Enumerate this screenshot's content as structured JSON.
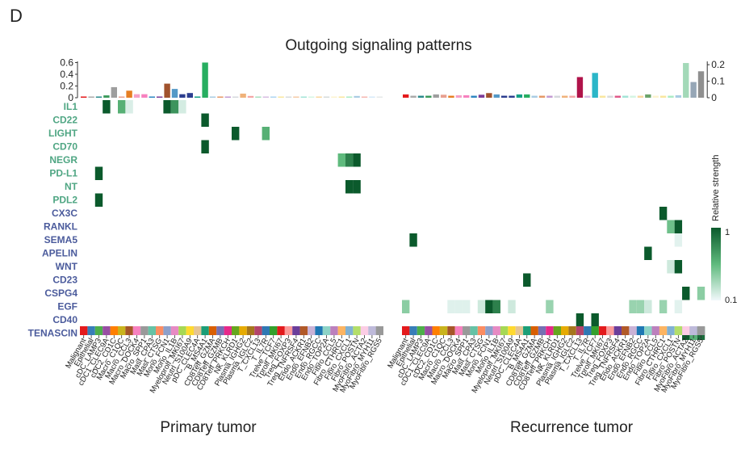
{
  "panel_label": "D",
  "title": "Outgoing signaling patterns",
  "legend": {
    "title": "Relative strength",
    "max_label": "1",
    "min_label": "0.1"
  },
  "colors": {
    "signal_group1": "#4fa683",
    "signal_group2": "#4b5b9c",
    "heat_high": "#0b5a2c",
    "heat_low": "#f1f8fb"
  },
  "chart_data": [
    {
      "type": "heatmap",
      "name": "Primary tumor",
      "bar_yticks": [
        "0",
        "0.2",
        "0.4",
        "0.6"
      ],
      "bar_ylim": [
        0,
        0.62
      ],
      "cells": [
        "Malignant",
        "Epithelial",
        "cDC_LAMP3",
        "cDC1_CLEC9A",
        "cDC2_CD1C",
        "Macro_C1QC",
        "Macro_CCL3",
        "Macro_DOCK4",
        "Macro_SPP1",
        "Mast_CPA3",
        "Mast_CTSG",
        "Mono_FCN1",
        "Mono_IL1B",
        "Myeloprolf_MKI67",
        "Neutrl_S100A9",
        "pDC_CLEC4A",
        "B_MS4A1",
        "CD8Teff_GZMA",
        "CD8Teff_GZMB",
        "CD8Teff_PRKCH",
        "NK_KLRD1",
        "Plasma_IGHG2",
        "Plasma_IGLC2",
        "T_CXCL13",
        "T_IL7R",
        "Trelve_TCF7",
        "Tprolf_MKI67",
        "Treg_FOXP3",
        "Treg_TNFRSF4",
        "Endo_ACKR1",
        "Endo_EFNB2",
        "Endo_RGCC",
        "Endo_TOP2A",
        "Fibro_CCL5",
        "Fibro_CTHRC1",
        "Fibro_CXCL1",
        "Fibro_POSTN",
        "MyoFibro_ACTA2",
        "MyoFibro_MYH11",
        "MyoFibro_RGS5"
      ],
      "cell_colors": [
        "#e41a1c",
        "#377eb8",
        "#4daf4a",
        "#984ea3",
        "#ff7f00",
        "#c9b41d",
        "#a65628",
        "#f781bf",
        "#999999",
        "#66c2a5",
        "#fc8d62",
        "#8da0cb",
        "#e78ac3",
        "#a6d854",
        "#ffd92f",
        "#e5c494",
        "#1b9e77",
        "#d95f02",
        "#7570b3",
        "#e7298a",
        "#66a61e",
        "#e6ab02",
        "#a6761d",
        "#b3446c",
        "#2f78b4",
        "#33a02c",
        "#e31a1c",
        "#fb9a99",
        "#6a3d9a",
        "#b15928",
        "#cab2d6",
        "#1f78b4",
        "#8dd3c7",
        "#bc80bd",
        "#fdb462",
        "#80b1d3",
        "#b3de69",
        "#fccde5",
        "#bebada",
        "#999999"
      ],
      "bar_values": [
        0.02,
        0.01,
        0.02,
        0.04,
        0.18,
        0.02,
        0.12,
        0.06,
        0.06,
        0.02,
        0.01,
        0.24,
        0.15,
        0.06,
        0.08,
        0.02,
        0.6,
        0.01,
        0.01,
        0.01,
        0.02,
        0.07,
        0.03,
        0.01,
        0.01,
        0.01,
        0.01,
        0.02,
        0.01,
        0.01,
        0.01,
        0.01,
        0.01,
        0.02,
        0.02,
        0.02,
        0.03,
        0.01,
        0.01,
        0.01
      ],
      "bar_colors": [
        "#e41a1c",
        "#aaaaaa",
        "#2a8a8c",
        "#3b9a5a",
        "#9e9e9e",
        "#e8a090",
        "#e67e22",
        "#f5a0c8",
        "#f781bf",
        "#2e86c1",
        "#7d3c98",
        "#a0522d",
        "#5499c7",
        "#2c3e8f",
        "#2c3e8f",
        "#16a085",
        "#27ae60",
        "#a9cce3",
        "#e59866",
        "#c39bd3",
        "#d5d8dc",
        "#f0b27a",
        "#f4a6a6",
        "#a9dfbf",
        "#d7bde2",
        "#aed6f1",
        "#f9e79f",
        "#d7dbdd",
        "#f5cba7",
        "#a3e4d7",
        "#d5f5e3",
        "#fad7a0",
        "#d5dbdb",
        "#fcf3cf",
        "#f9e79f",
        "#abebc6",
        "#a9cce3",
        "#f5b7b1",
        "#d6eaf8",
        "#e5e8e8"
      ],
      "signals": [
        "IL1",
        "CD22",
        "LIGHT",
        "CD70",
        "NEGR",
        "PD-L1",
        "NT",
        "PDL2",
        "CX3C",
        "RANKL",
        "SEMA5",
        "APELIN",
        "WNT",
        "CD23",
        "CSPG4",
        "EGF",
        "CD40",
        "TENASCIN"
      ],
      "signal_groups": [
        1,
        1,
        1,
        1,
        1,
        1,
        1,
        1,
        2,
        2,
        2,
        2,
        2,
        2,
        2,
        2,
        2,
        2
      ],
      "matrix": [
        {
          "signal": "IL1",
          "cells": [
            [
              3,
              1.0
            ],
            [
              5,
              0.55
            ],
            [
              6,
              0.08
            ],
            [
              11,
              1.0
            ],
            [
              12,
              0.7
            ],
            [
              13,
              0.1
            ]
          ]
        },
        {
          "signal": "CD22",
          "cells": [
            [
              16,
              1.0
            ]
          ]
        },
        {
          "signal": "LIGHT",
          "cells": [
            [
              20,
              1.0
            ],
            [
              24,
              0.55
            ]
          ]
        },
        {
          "signal": "CD70",
          "cells": [
            [
              16,
              1.0
            ]
          ]
        },
        {
          "signal": "NEGR",
          "cells": [
            [
              34,
              0.5
            ],
            [
              35,
              0.8
            ],
            [
              36,
              1.0
            ]
          ]
        },
        {
          "signal": "PD-L1",
          "cells": [
            [
              2,
              1.0
            ]
          ]
        },
        {
          "signal": "NT",
          "cells": [
            [
              35,
              1.0
            ],
            [
              36,
              1.0
            ]
          ]
        },
        {
          "signal": "PDL2",
          "cells": [
            [
              2,
              1.0
            ]
          ]
        }
      ],
      "panel_label": "Primary tumor"
    },
    {
      "type": "heatmap",
      "name": "Recurrence tumor",
      "bar_yticks": [
        "0",
        "0.1",
        "0.2"
      ],
      "bar_ylim": [
        0,
        0.22
      ],
      "cells": [
        "Malignant",
        "Epithelial",
        "cDC_LAMP3",
        "cDC1_CLEC9A",
        "cDC2_CD1C",
        "Macro_C1QC",
        "Macro_CCL3",
        "Macro_DOCK4",
        "Macro_SPP1",
        "Mast_CPA3",
        "Mast_CTSG",
        "Mono_FCN1",
        "Mono_IL1B",
        "Myeloprolf_MKI67",
        "Neutrl_S100A9",
        "pDC_CLEC4A",
        "B_MS4A1",
        "CD8Teff_GZMA",
        "CD8Teff_GZMB",
        "CD8Teff_PRKCH",
        "NK_KLRD1",
        "Plasma_IGHG2",
        "Plasma_IGLC2",
        "T_CXCL13",
        "T_IL7R",
        "Trelve_TCF7",
        "Tprolf_MKI67",
        "Treg_FOXP3",
        "Treg_TNFRSF4",
        "Endo_ACKR1",
        "Endo_EFNB2",
        "Endo_RGCC",
        "Endo_TOP2A",
        "Fibro_CCL5",
        "Fibro_CTHRC1",
        "Fibro_CXCL1",
        "Fibro_POSTN",
        "MyoFibro_ACTA2",
        "MyoFibro_MYH11",
        "MyoFibro_RGS5"
      ],
      "cell_colors": [
        "#e41a1c",
        "#377eb8",
        "#4daf4a",
        "#984ea3",
        "#ff7f00",
        "#c9b41d",
        "#a65628",
        "#f781bf",
        "#999999",
        "#66c2a5",
        "#fc8d62",
        "#8da0cb",
        "#e78ac3",
        "#a6d854",
        "#ffd92f",
        "#e5c494",
        "#1b9e77",
        "#d95f02",
        "#7570b3",
        "#e7298a",
        "#66a61e",
        "#e6ab02",
        "#a6761d",
        "#b3446c",
        "#2f78b4",
        "#33a02c",
        "#e31a1c",
        "#fb9a99",
        "#6a3d9a",
        "#b15928",
        "#cab2d6",
        "#1f78b4",
        "#8dd3c7",
        "#bc80bd",
        "#fdb462",
        "#80b1d3",
        "#b3de69",
        "#fccde5",
        "#bebada",
        "#999999"
      ],
      "bar_values": [
        0.02,
        0.012,
        0.012,
        0.012,
        0.02,
        0.018,
        0.012,
        0.015,
        0.015,
        0.012,
        0.018,
        0.028,
        0.02,
        0.012,
        0.012,
        0.02,
        0.02,
        0.012,
        0.012,
        0.012,
        0.012,
        0.012,
        0.012,
        0.125,
        0.012,
        0.15,
        0.012,
        0.012,
        0.012,
        0.012,
        0.012,
        0.012,
        0.02,
        0.012,
        0.012,
        0.012,
        0.015,
        0.21,
        0.095,
        0.16
      ],
      "bar_colors": [
        "#e41a1c",
        "#aaaaaa",
        "#2a8a8c",
        "#3b9a5a",
        "#9e9e9e",
        "#e8a090",
        "#e67e22",
        "#f5a0c8",
        "#f781bf",
        "#2e86c1",
        "#7d3c98",
        "#a0522d",
        "#5499c7",
        "#2c3e8f",
        "#2c3e8f",
        "#16a085",
        "#27ae60",
        "#a9cce3",
        "#e59866",
        "#c39bd3",
        "#d5d8dc",
        "#f0b27a",
        "#f4a6a6",
        "#b0134a",
        "#d7bde2",
        "#2bb6c8",
        "#f9e79f",
        "#d7dbdd",
        "#e05a8a",
        "#a3e4d7",
        "#d5f5e3",
        "#fad7a0",
        "#6ca46a",
        "#fcf3cf",
        "#f9e79f",
        "#abebc6",
        "#a9cce3",
        "#a3d9b8",
        "#96a6b6",
        "#8f8f8f"
      ],
      "signals": [
        "IL1",
        "CD22",
        "LIGHT",
        "CD70",
        "NEGR",
        "PD-L1",
        "NT",
        "PDL2",
        "CX3C",
        "RANKL",
        "SEMA5",
        "APELIN",
        "WNT",
        "CD23",
        "CSPG4",
        "EGF",
        "CD40",
        "TENASCIN"
      ],
      "matrix": [
        {
          "signal": "CX3C",
          "cells": [
            [
              34,
              1.0
            ]
          ]
        },
        {
          "signal": "RANKL",
          "cells": [
            [
              35,
              0.45
            ],
            [
              36,
              1.0
            ]
          ]
        },
        {
          "signal": "SEMA5",
          "cells": [
            [
              1,
              1.0
            ],
            [
              36,
              0.05
            ]
          ]
        },
        {
          "signal": "APELIN",
          "cells": [
            [
              32,
              1.0
            ]
          ]
        },
        {
          "signal": "WNT",
          "cells": [
            [
              35,
              0.12
            ],
            [
              36,
              1.0
            ]
          ]
        },
        {
          "signal": "CD23",
          "cells": [
            [
              16,
              1.0
            ]
          ]
        },
        {
          "signal": "CSPG4",
          "cells": [
            [
              37,
              1.0
            ],
            [
              39,
              0.35
            ]
          ]
        },
        {
          "signal": "EGF",
          "cells": [
            [
              0,
              0.35
            ],
            [
              6,
              0.06
            ],
            [
              7,
              0.06
            ],
            [
              8,
              0.06
            ],
            [
              10,
              0.12
            ],
            [
              11,
              1.0
            ],
            [
              12,
              0.8
            ],
            [
              14,
              0.12
            ],
            [
              19,
              0.3
            ],
            [
              30,
              0.3
            ],
            [
              31,
              0.3
            ],
            [
              32,
              0.12
            ],
            [
              34,
              0.3
            ],
            [
              36,
              0.05
            ]
          ]
        },
        {
          "signal": "CD40",
          "cells": [
            [
              23,
              1.0
            ],
            [
              25,
              1.0
            ]
          ]
        },
        {
          "signal": "TENASCIN",
          "cells": [
            [
              37,
              1.0
            ],
            [
              38,
              0.55
            ],
            [
              39,
              0.9
            ]
          ]
        }
      ],
      "panel_label": "Recurrence tumor"
    }
  ]
}
